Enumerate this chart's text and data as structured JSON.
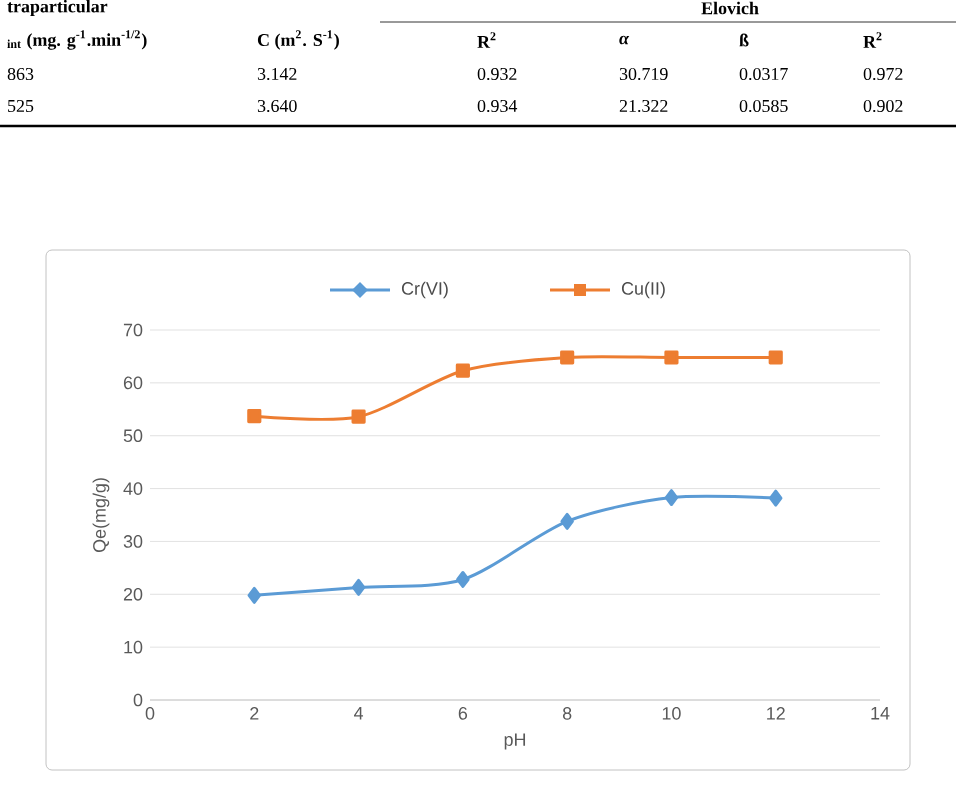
{
  "chart_data": {
    "type": "line",
    "annotations": [
      "traparticular",
      "Elovich",
      "$_{int}$ (mg. g$^{-1}$.min$^{-1/2}$)",
      "C (m$^{2}$. S$^{-1}$)",
      "R$^{2}$",
      "*α*",
      "ß",
      "R$^{2}$",
      "863",
      "3.142",
      "0.932",
      "30.719",
      "0.0317",
      "0.972",
      "525",
      "3.640",
      "0.934",
      "21.322",
      "0.0585",
      "0.902"
    ],
    "xlabel": "pH",
    "ylabel": "Qe(mg/g)",
    "x": [
      2,
      4,
      6,
      8,
      10,
      12
    ],
    "series": [
      {
        "name": "Cr(VI)",
        "color": "#5b9bd5",
        "marker": "diamond",
        "values": [
          19.8,
          21.3,
          22.8,
          33.8,
          38.3,
          38.2
        ]
      },
      {
        "name": "Cu(II)",
        "color": "#ed7d31",
        "marker": "square",
        "values": [
          53.7,
          53.6,
          62.3,
          64.8,
          64.8,
          64.8
        ]
      }
    ],
    "xlim": [
      0,
      14
    ],
    "xticks": [
      0,
      2,
      4,
      6,
      8,
      10,
      12,
      14
    ],
    "ylim": [
      0,
      70
    ],
    "yticks": [
      0,
      10,
      20,
      30,
      40,
      50,
      60,
      70
    ],
    "grid": "y",
    "legend": "top"
  }
}
